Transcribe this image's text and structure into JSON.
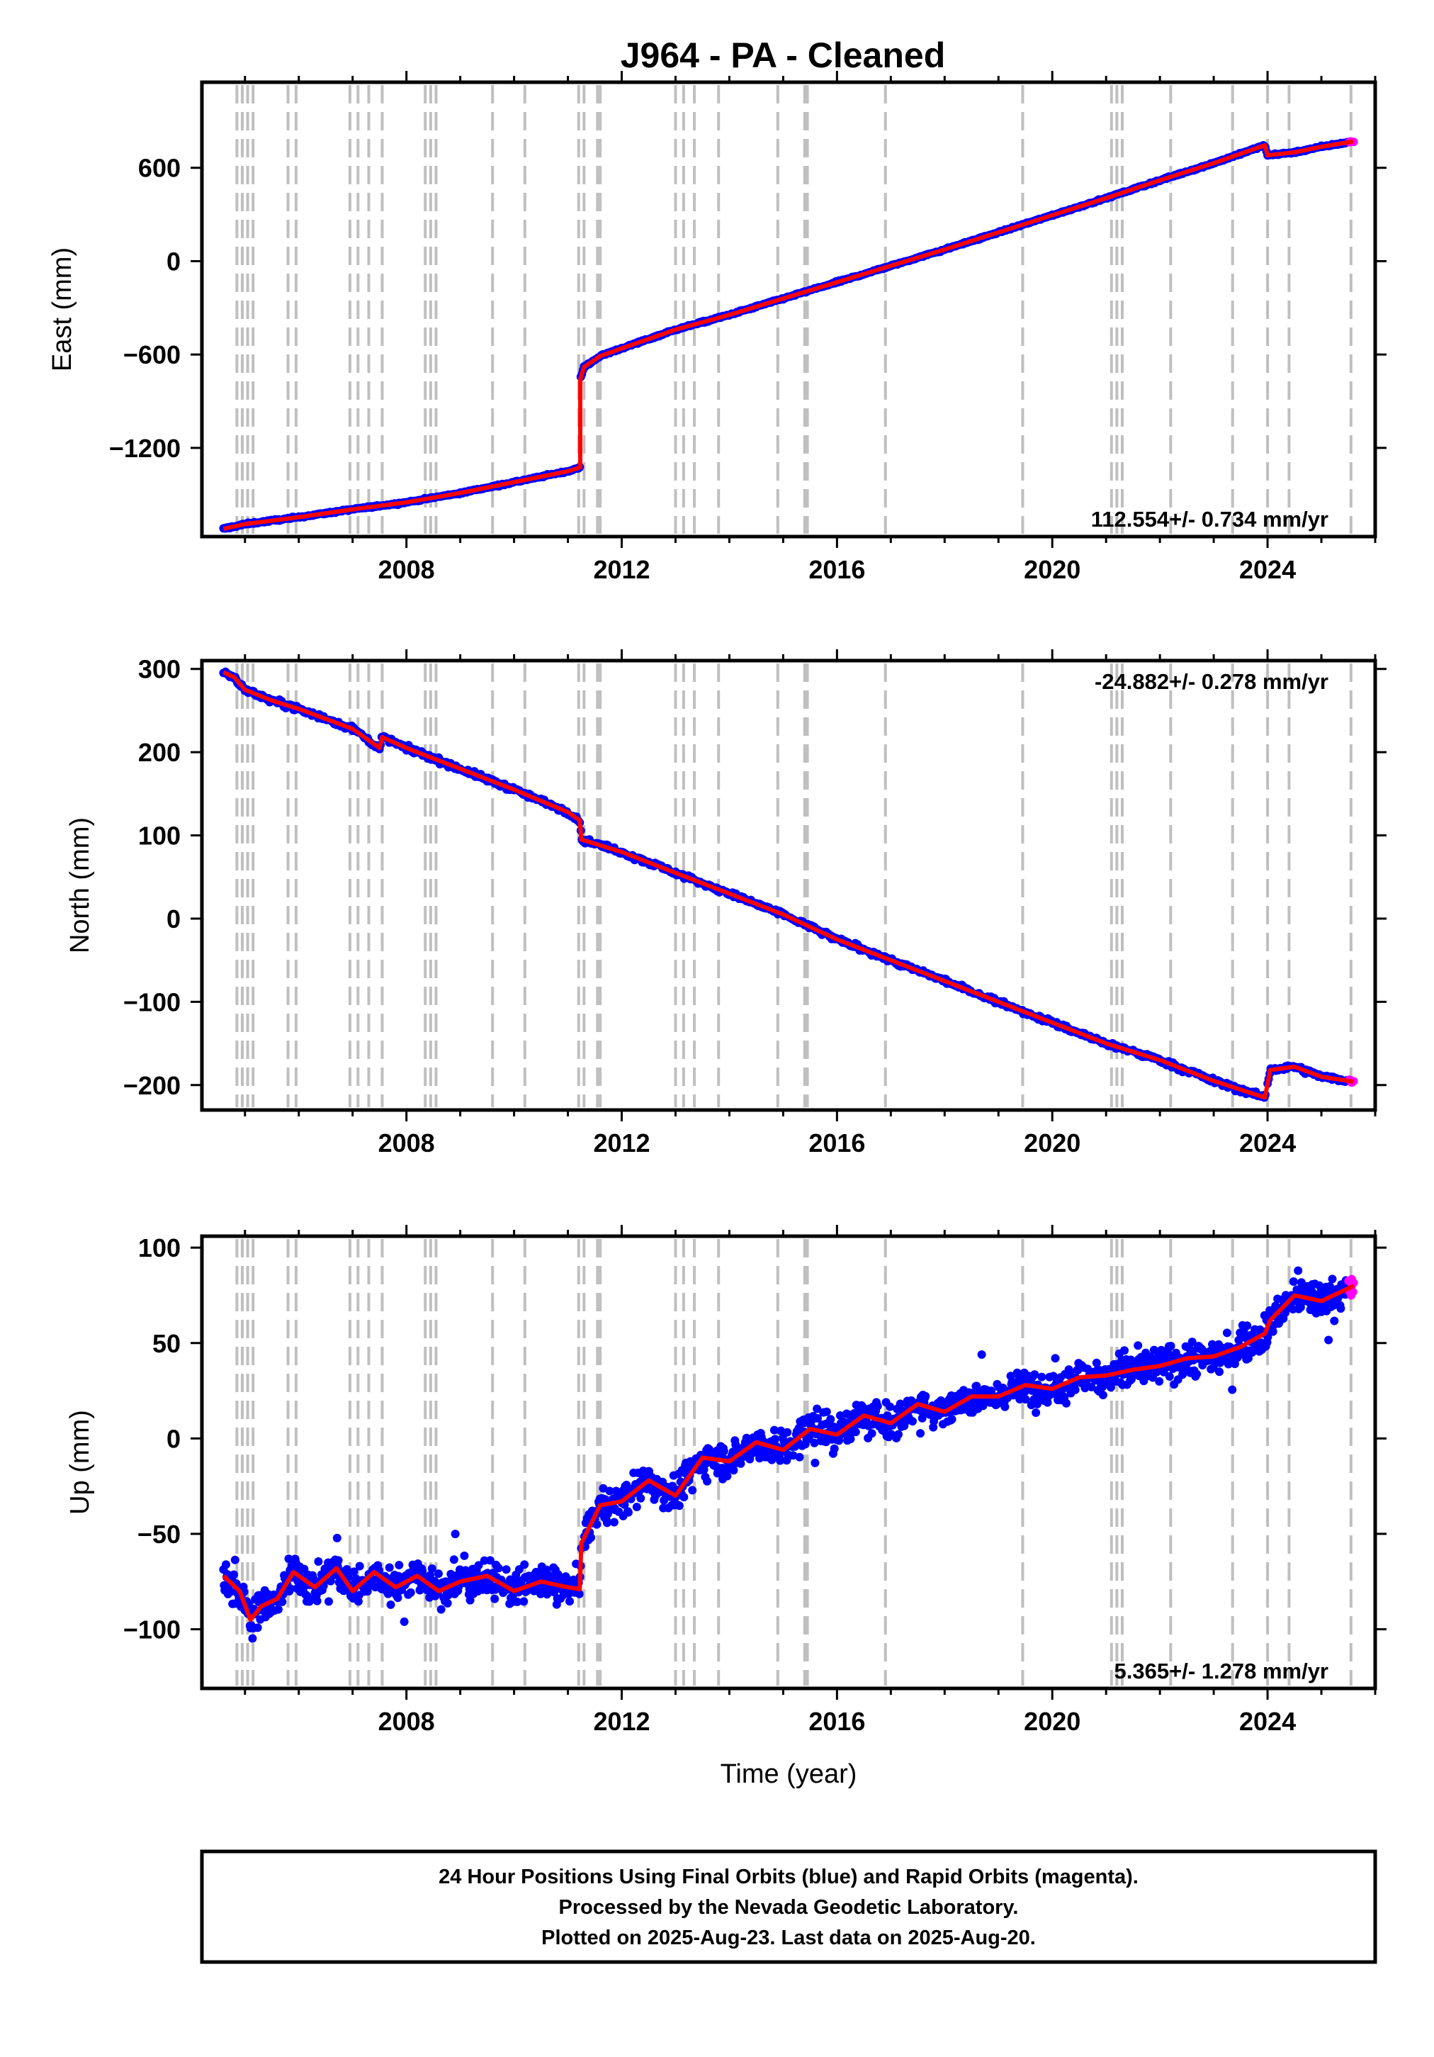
{
  "title": "J964  - PA - Cleaned",
  "footer": {
    "lines": [
      "24 Hour Positions Using Final Orbits (blue) and Rapid Orbits (magenta).",
      "Processed by the Nevada Geodetic Laboratory.",
      "Plotted on 2025-Aug-23. Last data on 2025-Aug-20."
    ]
  },
  "colors": {
    "final": "#0000ff",
    "rapid": "#ff00ff",
    "model": "#ff0000",
    "event_lines": "#bfbfbf"
  },
  "chart_data": [
    {
      "type": "scatter",
      "ylabel": "East (mm)",
      "xlim": [
        2004.2,
        2026.0
      ],
      "ylim": [
        -1770,
        1150
      ],
      "yticks": [
        -1200,
        -600,
        0,
        600
      ],
      "xticks": [
        2008,
        2012,
        2016,
        2020,
        2024
      ],
      "rate": "112.554+/- 0.734 mm/yr",
      "rate_position": "bottom-right",
      "points": [
        [
          2004.6,
          -1720
        ],
        [
          2005.0,
          -1690
        ],
        [
          2006.0,
          -1645
        ],
        [
          2007.0,
          -1595
        ],
        [
          2008.0,
          -1550
        ],
        [
          2009.0,
          -1490
        ],
        [
          2010.0,
          -1420
        ],
        [
          2011.0,
          -1350
        ],
        [
          2011.23,
          -1325
        ],
        [
          2011.23,
          -760
        ],
        [
          2011.3,
          -680
        ],
        [
          2011.6,
          -610
        ],
        [
          2012.0,
          -560
        ],
        [
          2013.0,
          -440
        ],
        [
          2014.0,
          -345
        ],
        [
          2015.0,
          -240
        ],
        [
          2016.0,
          -135
        ],
        [
          2017.0,
          -30
        ],
        [
          2018.0,
          75
        ],
        [
          2019.0,
          185
        ],
        [
          2020.0,
          295
        ],
        [
          2021.0,
          405
        ],
        [
          2022.0,
          520
        ],
        [
          2023.0,
          630
        ],
        [
          2023.95,
          745
        ],
        [
          2024.0,
          680
        ],
        [
          2024.5,
          700
        ],
        [
          2025.0,
          735
        ],
        [
          2025.6,
          770
        ]
      ],
      "rapid_from": 2025.5
    },
    {
      "type": "scatter",
      "ylabel": "North (mm)",
      "xlim": [
        2004.2,
        2026.0
      ],
      "ylim": [
        -230,
        310
      ],
      "yticks": [
        -200,
        -100,
        0,
        100,
        200,
        300
      ],
      "xticks": [
        2008,
        2012,
        2016,
        2020,
        2024
      ],
      "rate": "-24.882+/- 0.278 mm/yr",
      "rate_position": "top-right",
      "points": [
        [
          2004.6,
          296
        ],
        [
          2004.8,
          290
        ],
        [
          2005.0,
          275
        ],
        [
          2005.5,
          262
        ],
        [
          2006.0,
          252
        ],
        [
          2007.0,
          228
        ],
        [
          2007.5,
          205
        ],
        [
          2007.55,
          218
        ],
        [
          2008.0,
          205
        ],
        [
          2009.0,
          180
        ],
        [
          2010.0,
          155
        ],
        [
          2011.0,
          128
        ],
        [
          2011.22,
          118
        ],
        [
          2011.25,
          95
        ],
        [
          2012.0,
          80
        ],
        [
          2013.0,
          55
        ],
        [
          2014.0,
          30
        ],
        [
          2015.0,
          5
        ],
        [
          2016.0,
          -25
        ],
        [
          2017.0,
          -50
        ],
        [
          2018.0,
          -75
        ],
        [
          2019.0,
          -100
        ],
        [
          2020.0,
          -125
        ],
        [
          2021.0,
          -150
        ],
        [
          2022.0,
          -170
        ],
        [
          2023.0,
          -195
        ],
        [
          2023.95,
          -215
        ],
        [
          2024.05,
          -182
        ],
        [
          2024.5,
          -178
        ],
        [
          2025.0,
          -190
        ],
        [
          2025.6,
          -196
        ]
      ],
      "rapid_from": 2025.5
    },
    {
      "type": "scatter",
      "ylabel": "Up (mm)",
      "xlabel": "Time (year)",
      "xlim": [
        2004.2,
        2026.0
      ],
      "ylim": [
        -131,
        106
      ],
      "yticks": [
        -100,
        -50,
        0,
        50,
        100
      ],
      "xticks": [
        2008,
        2012,
        2016,
        2020,
        2024
      ],
      "rate": "5.365+/- 1.278 mm/yr",
      "rate_position": "bottom-right",
      "points": [
        [
          2004.6,
          -72
        ],
        [
          2004.9,
          -80
        ],
        [
          2005.1,
          -95
        ],
        [
          2005.3,
          -88
        ],
        [
          2005.6,
          -84
        ],
        [
          2005.9,
          -70
        ],
        [
          2006.3,
          -78
        ],
        [
          2006.7,
          -68
        ],
        [
          2007.0,
          -80
        ],
        [
          2007.4,
          -70
        ],
        [
          2007.8,
          -78
        ],
        [
          2008.2,
          -72
        ],
        [
          2008.6,
          -80
        ],
        [
          2009.0,
          -75
        ],
        [
          2009.5,
          -72
        ],
        [
          2010.0,
          -80
        ],
        [
          2010.5,
          -75
        ],
        [
          2011.0,
          -78
        ],
        [
          2011.22,
          -79
        ],
        [
          2011.25,
          -55
        ],
        [
          2011.6,
          -35
        ],
        [
          2012.0,
          -33
        ],
        [
          2012.5,
          -22
        ],
        [
          2013.0,
          -30
        ],
        [
          2013.5,
          -10
        ],
        [
          2014.0,
          -12
        ],
        [
          2014.5,
          -2
        ],
        [
          2015.0,
          -6
        ],
        [
          2015.5,
          5
        ],
        [
          2016.0,
          2
        ],
        [
          2016.5,
          12
        ],
        [
          2017.0,
          8
        ],
        [
          2017.5,
          18
        ],
        [
          2018.0,
          14
        ],
        [
          2018.5,
          22
        ],
        [
          2019.0,
          22
        ],
        [
          2019.5,
          28
        ],
        [
          2020.0,
          26
        ],
        [
          2020.5,
          32
        ],
        [
          2021.0,
          33
        ],
        [
          2021.5,
          36
        ],
        [
          2022.0,
          38
        ],
        [
          2022.5,
          42
        ],
        [
          2023.0,
          43
        ],
        [
          2023.5,
          48
        ],
        [
          2023.95,
          55
        ],
        [
          2024.05,
          62
        ],
        [
          2024.5,
          75
        ],
        [
          2025.0,
          72
        ],
        [
          2025.6,
          80
        ]
      ],
      "rapid_from": 2025.5
    }
  ],
  "event_lines": [
    2004.85,
    2004.95,
    2005.05,
    2005.15,
    2005.8,
    2005.95,
    2006.95,
    2007.1,
    2007.3,
    2007.55,
    2008.35,
    2008.45,
    2008.55,
    2009.6,
    2010.2,
    2011.2,
    2011.3,
    2011.55,
    2011.6,
    2013.0,
    2013.15,
    2013.35,
    2013.8,
    2014.9,
    2015.4,
    2015.45,
    2016.9,
    2019.45,
    2021.1,
    2021.2,
    2021.3,
    2022.2,
    2023.35,
    2024.0,
    2024.4,
    2025.55
  ]
}
